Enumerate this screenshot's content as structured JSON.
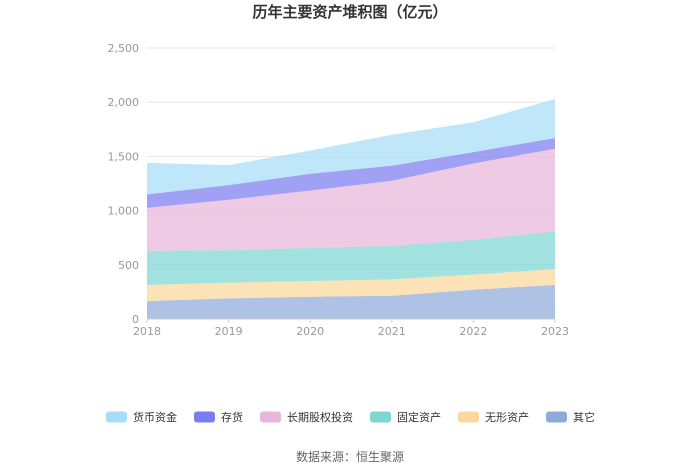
{
  "chart_data": {
    "type": "area",
    "stacked": true,
    "title": "历年主要资产堆积图（亿元）",
    "categories": [
      "2018",
      "2019",
      "2020",
      "2021",
      "2022",
      "2023"
    ],
    "ylim": [
      0,
      2500
    ],
    "yticks": [
      "0",
      "500",
      "1,000",
      "1,500",
      "2,000",
      "2,500"
    ],
    "ytick_values": [
      0,
      500,
      1000,
      1500,
      2000,
      2500
    ],
    "grid": true,
    "legend_position": "bottom",
    "series": [
      {
        "name": "其它",
        "color": "#8eaadb",
        "values": [
          165,
          190,
          205,
          215,
          270,
          315
        ]
      },
      {
        "name": "无形资产",
        "color": "#fbd89b",
        "values": [
          150,
          145,
          145,
          150,
          140,
          145
        ]
      },
      {
        "name": "固定资产",
        "color": "#7dd6d2",
        "values": [
          315,
          300,
          305,
          310,
          320,
          350
        ]
      },
      {
        "name": "长期股权投资",
        "color": "#e9b6db",
        "values": [
          395,
          465,
          530,
          600,
          705,
          760
        ]
      },
      {
        "name": "存货",
        "color": "#7b7cf0",
        "values": [
          125,
          135,
          155,
          140,
          105,
          100
        ]
      },
      {
        "name": "货币资金",
        "color": "#a7def7",
        "values": [
          290,
          185,
          215,
          285,
          275,
          360
        ]
      }
    ],
    "legend_order": [
      "货币资金",
      "存货",
      "长期股权投资",
      "固定资产",
      "无形资产",
      "其它"
    ]
  },
  "source": "数据来源：恒生聚源"
}
